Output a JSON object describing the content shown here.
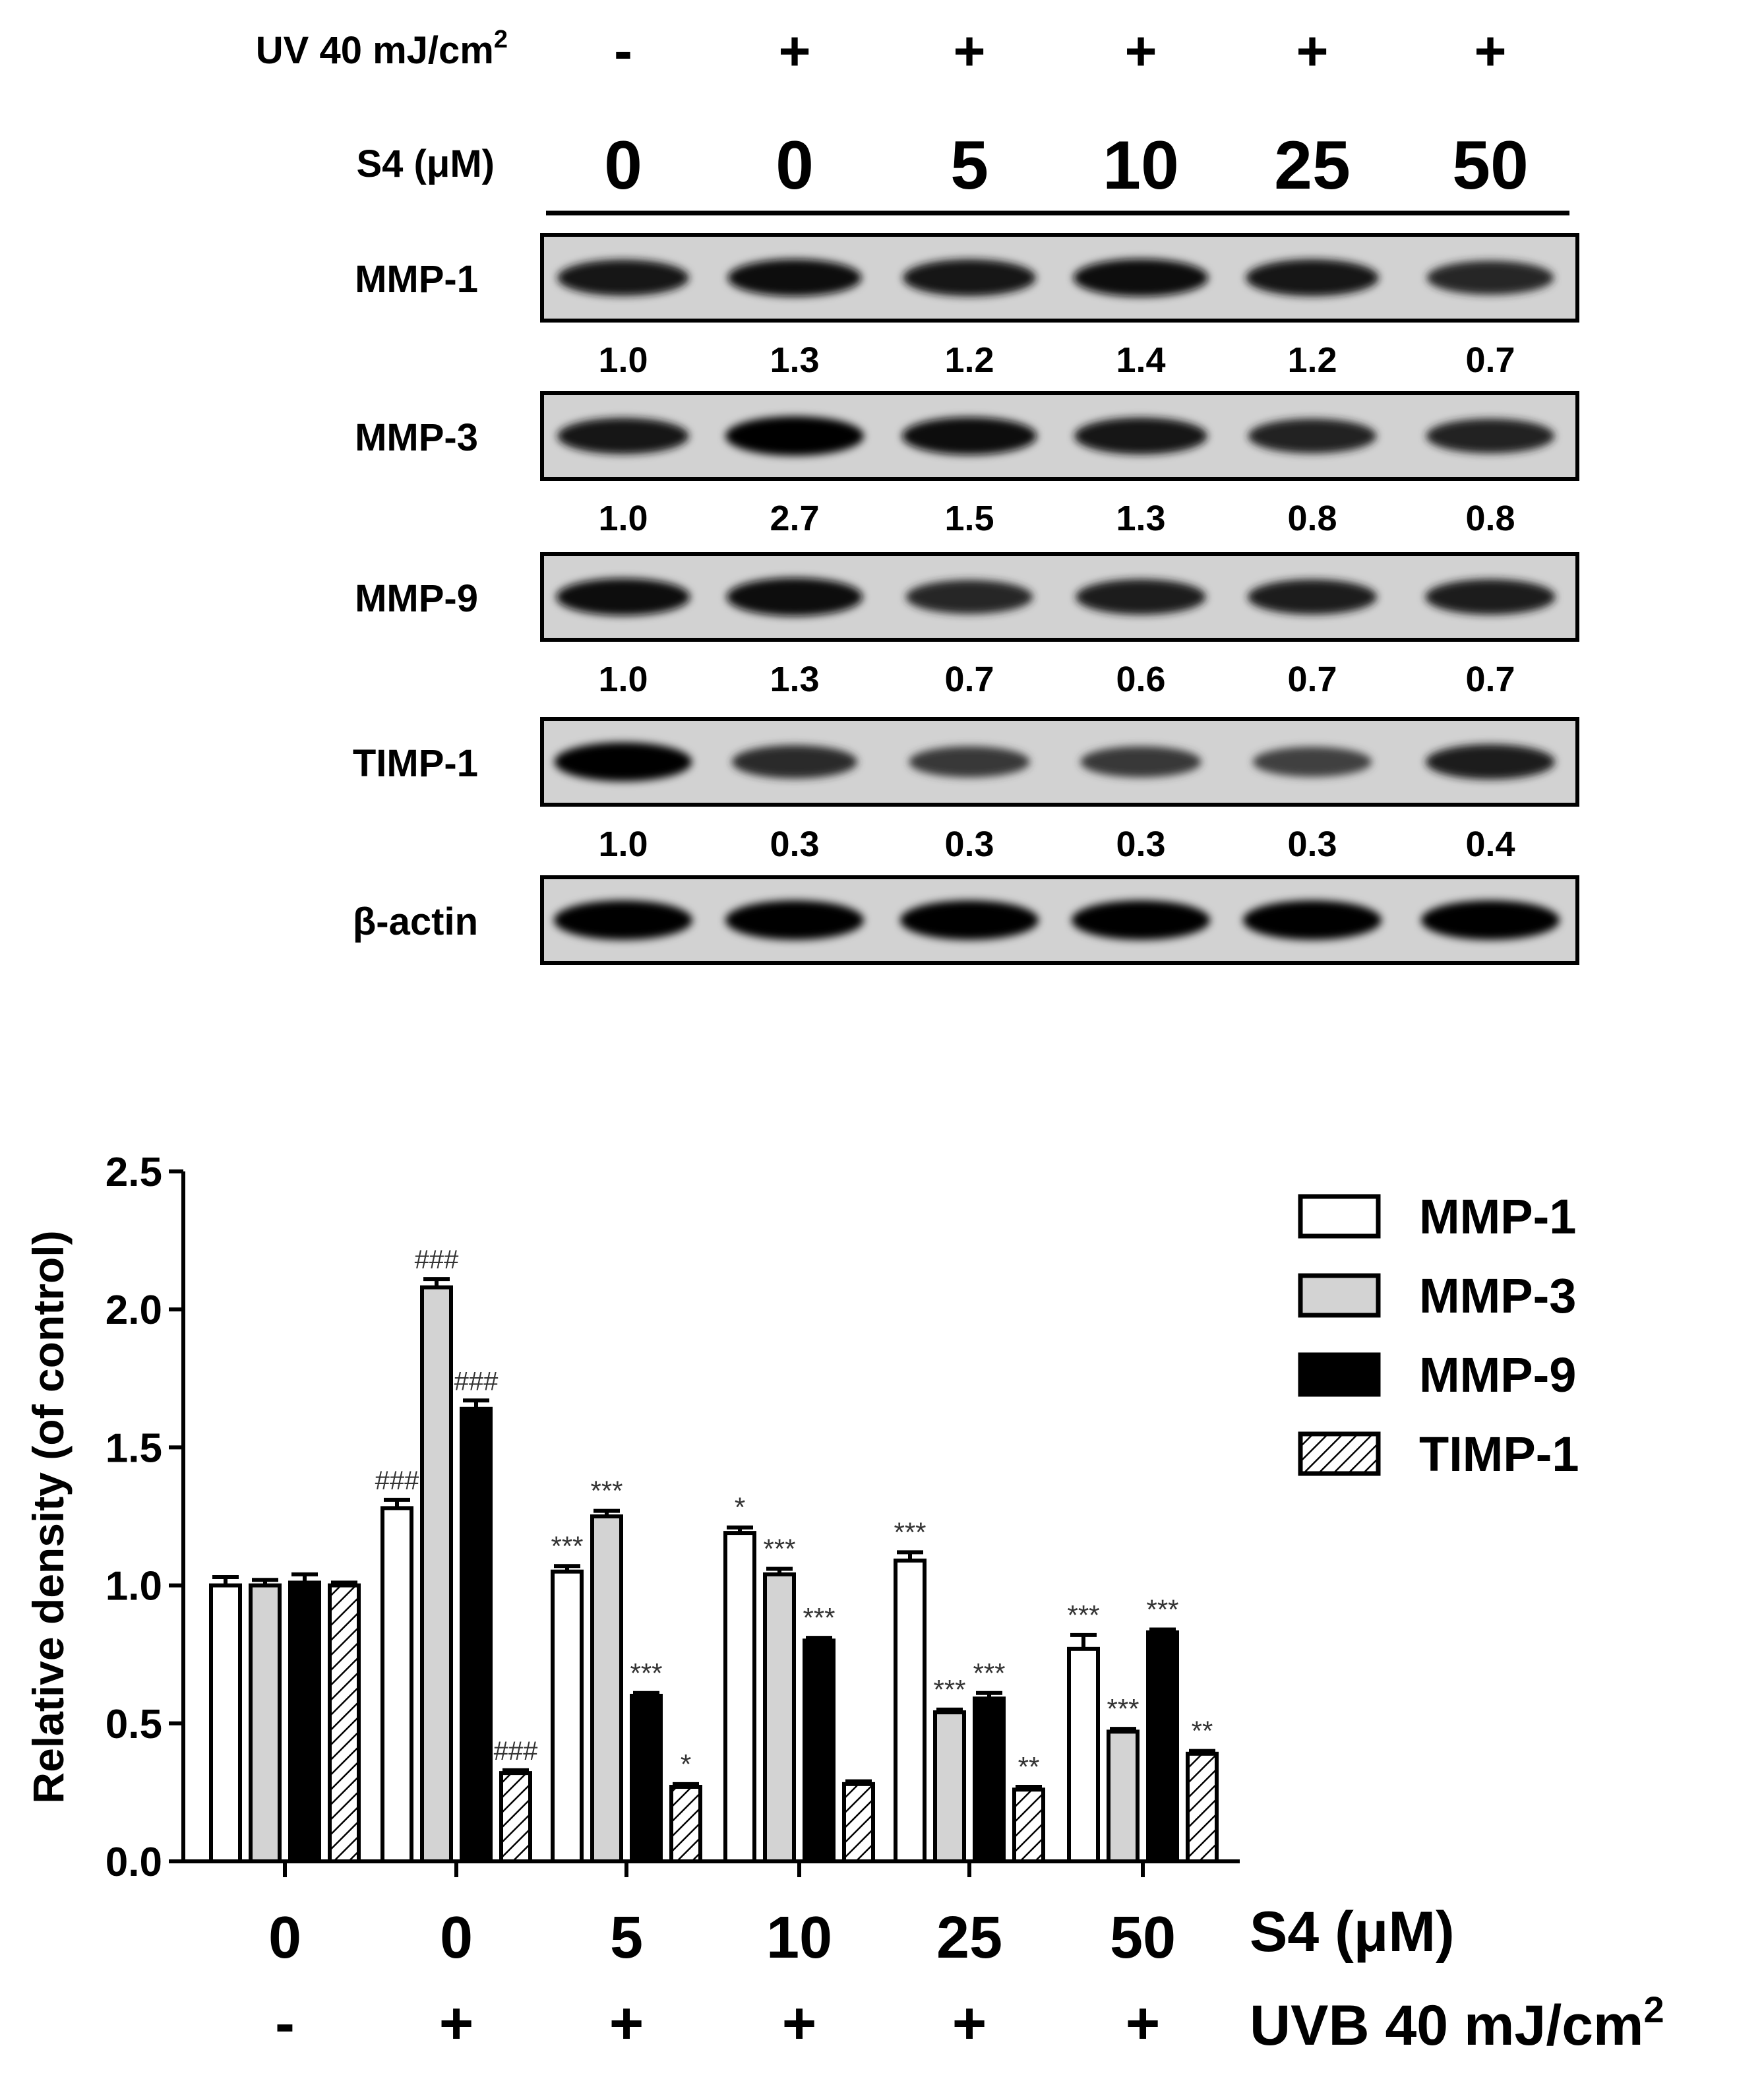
{
  "blot": {
    "uv_label": "UV 40 mJ/cm",
    "uv_sup": "2",
    "uv_signs": [
      "-",
      "+",
      "+",
      "+",
      "+",
      "+"
    ],
    "dose_label": "S4 (μM)",
    "doses": [
      "0",
      "0",
      "5",
      "10",
      "25",
      "50"
    ],
    "rows": [
      {
        "name": "MMP-1",
        "values": [
          "1.0",
          "1.3",
          "1.2",
          "1.4",
          "1.2",
          "0.7"
        ],
        "intensity": [
          0.85,
          0.9,
          0.88,
          0.92,
          0.88,
          0.75
        ]
      },
      {
        "name": "MMP-3",
        "values": [
          "1.0",
          "2.7",
          "1.5",
          "1.3",
          "0.8",
          "0.8"
        ],
        "intensity": [
          0.85,
          1.0,
          0.92,
          0.88,
          0.78,
          0.78
        ]
      },
      {
        "name": "MMP-9",
        "values": [
          "1.0",
          "1.3",
          "0.7",
          "0.6",
          "0.7",
          "0.7"
        ],
        "intensity": [
          0.9,
          0.95,
          0.75,
          0.82,
          0.8,
          0.82
        ]
      },
      {
        "name": "TIMP-1",
        "values": [
          "1.0",
          "0.3",
          "0.3",
          "0.3",
          "0.3",
          "0.4"
        ],
        "intensity": [
          0.98,
          0.72,
          0.62,
          0.62,
          0.58,
          0.8
        ]
      },
      {
        "name": "β-actin",
        "values": [],
        "intensity": [
          1,
          1,
          1,
          1,
          1,
          1
        ]
      }
    ]
  },
  "chart_data": {
    "type": "bar",
    "ylabel": "Relative density (of control)",
    "ylim": [
      0,
      2.5
    ],
    "yticks": [
      "0.0",
      "0.5",
      "1.0",
      "1.5",
      "2.0",
      "2.5"
    ],
    "categories": [
      "0",
      "0",
      "5",
      "10",
      "25",
      "50"
    ],
    "x_row_label": "S4 (μM)",
    "uvb_signs": [
      "-",
      "+",
      "+",
      "+",
      "+",
      "+"
    ],
    "uvb_label": "UVB 40 mJ/cm",
    "uvb_sup": "2",
    "legend_position": "right",
    "series": [
      {
        "name": "MMP-1",
        "fill": "#ffffff",
        "pattern": "none",
        "values": [
          1.0,
          1.28,
          1.05,
          1.19,
          1.09,
          0.77
        ],
        "errors": [
          0.03,
          0.03,
          0.02,
          0.02,
          0.03,
          0.05
        ],
        "annotations": [
          "",
          "###",
          "***",
          "*",
          "***",
          "***"
        ]
      },
      {
        "name": "MMP-3",
        "fill": "#d3d3d3",
        "pattern": "none",
        "values": [
          1.0,
          2.08,
          1.25,
          1.04,
          0.54,
          0.47
        ],
        "errors": [
          0.02,
          0.03,
          0.02,
          0.02,
          0.01,
          0.01
        ],
        "annotations": [
          "",
          "###",
          "***",
          "***",
          "***",
          "***"
        ]
      },
      {
        "name": "MMP-9",
        "fill": "#000000",
        "pattern": "none",
        "values": [
          1.01,
          1.64,
          0.6,
          0.8,
          0.59,
          0.83
        ],
        "errors": [
          0.03,
          0.03,
          0.01,
          0.01,
          0.02,
          0.01
        ],
        "annotations": [
          "",
          "###",
          "***",
          "***",
          "***",
          "***"
        ]
      },
      {
        "name": "TIMP-1",
        "fill": "#ffffff",
        "pattern": "hatch",
        "values": [
          1.0,
          0.32,
          0.27,
          0.28,
          0.26,
          0.39
        ],
        "errors": [
          0.01,
          0.01,
          0.01,
          0.01,
          0.01,
          0.01
        ],
        "annotations": [
          "",
          "###",
          "*",
          "",
          "**",
          "**"
        ]
      }
    ]
  }
}
